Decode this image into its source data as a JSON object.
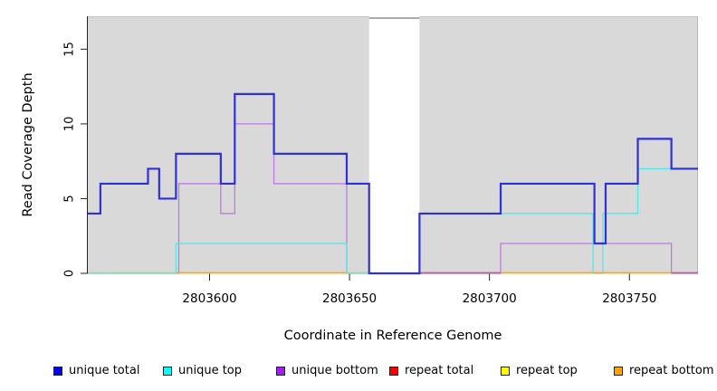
{
  "chart_data": {
    "type": "step",
    "title": "",
    "xlabel": "Coordinate in Reference Genome",
    "ylabel": "Read Coverage Depth",
    "xlim": [
      2803556.5,
      2803774.5
    ],
    "ylim": [
      0,
      17.2
    ],
    "xticks": [
      {
        "value": 2803600,
        "label": "2803600"
      },
      {
        "value": 2803650,
        "label": "2803650"
      },
      {
        "value": 2803700,
        "label": "2803700"
      },
      {
        "value": 2803750,
        "label": "2803750"
      }
    ],
    "yticks": [
      {
        "value": 0,
        "label": "0"
      },
      {
        "value": 5,
        "label": "5"
      },
      {
        "value": 10,
        "label": "10"
      },
      {
        "value": 15,
        "label": "15"
      }
    ],
    "plot_background": "#d9d9d9",
    "masked_region": {
      "from": 2803657,
      "to": 2803675
    },
    "series": [
      {
        "name": "unique bottom",
        "color": "#bd7ae3",
        "width": 1.3,
        "steps": [
          [
            2803556.5,
            0
          ],
          [
            2803589,
            6
          ],
          [
            2803604,
            4
          ],
          [
            2803609,
            10
          ],
          [
            2803623,
            6
          ],
          [
            2803649,
            0
          ],
          [
            2803704,
            2
          ],
          [
            2803765,
            0
          ],
          [
            2803774.5,
            0
          ]
        ]
      },
      {
        "name": "unique top",
        "color": "#55e6ea",
        "width": 1.3,
        "steps": [
          [
            2803556.5,
            0
          ],
          [
            2803588,
            2
          ],
          [
            2803649,
            0
          ],
          [
            2803675,
            4
          ],
          [
            2803737,
            0
          ],
          [
            2803740.5,
            4
          ],
          [
            2803753,
            7
          ],
          [
            2803774.5,
            7
          ]
        ]
      },
      {
        "name": "unique total",
        "color": "#3030d8",
        "width": 2.2,
        "steps": [
          [
            2803556.5,
            4
          ],
          [
            2803561,
            6
          ],
          [
            2803578,
            7
          ],
          [
            2803582,
            5
          ],
          [
            2803588,
            8
          ],
          [
            2803604,
            6
          ],
          [
            2803609,
            12
          ],
          [
            2803623,
            8
          ],
          [
            2803649,
            6
          ],
          [
            2803657,
            0
          ],
          [
            2803675,
            4
          ],
          [
            2803704,
            6
          ],
          [
            2803737.5,
            2
          ],
          [
            2803741.5,
            6
          ],
          [
            2803753,
            9
          ],
          [
            2803765,
            7
          ],
          [
            2803774.5,
            7
          ]
        ]
      }
    ],
    "baseline_segments": [
      {
        "from": 2803556.5,
        "to": 2803588,
        "color": "#9cd89c"
      },
      {
        "from": 2803588,
        "to": 2803649,
        "color": "#ffa318"
      },
      {
        "from": 2803649,
        "to": 2803657,
        "color": "#9cd89c"
      },
      {
        "from": 2803675,
        "to": 2803704,
        "color": "#c75c88"
      },
      {
        "from": 2803704,
        "to": 2803765,
        "color": "#ffa318"
      },
      {
        "from": 2803765,
        "to": 2803774.5,
        "color": "#c75c88"
      }
    ]
  },
  "legend": {
    "items": [
      {
        "label": "unique total",
        "color": "#0000ee"
      },
      {
        "label": "unique top",
        "color": "#00ffff"
      },
      {
        "label": "unique bottom",
        "color": "#a020f0"
      },
      {
        "label": "repeat total",
        "color": "#ff0000"
      },
      {
        "label": "repeat top",
        "color": "#ffff00"
      },
      {
        "label": "repeat bottom",
        "color": "#ffa500"
      }
    ]
  }
}
